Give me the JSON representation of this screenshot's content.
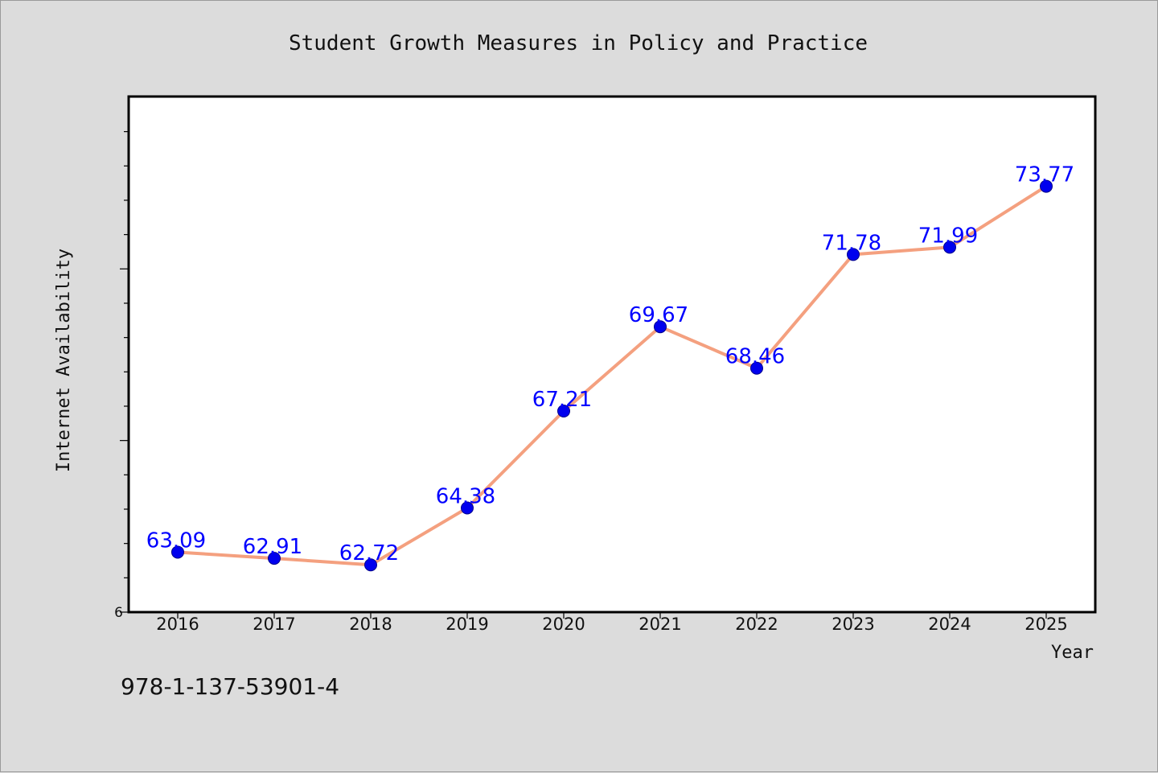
{
  "chart_data": {
    "type": "line",
    "title": "Student Growth Measures in Policy and Practice",
    "xlabel": "Year",
    "ylabel": "Internet Availability",
    "categories": [
      "2016",
      "2017",
      "2018",
      "2019",
      "2020",
      "2021",
      "2022",
      "2023",
      "2024",
      "2025"
    ],
    "series": [
      {
        "values": [
          63.09,
          62.91,
          62.72,
          64.38,
          67.21,
          69.67,
          68.46,
          71.78,
          71.99,
          73.77
        ]
      }
    ],
    "data_labels": [
      "63.09",
      "62.91",
      "62.72",
      "64.38",
      "67.21",
      "69.67",
      "68.46",
      "71.78",
      "71.99",
      "73.77"
    ],
    "y_tick_labels": [
      "6"
    ],
    "ylim": [
      61.34,
      76.39
    ],
    "grid": false,
    "legend": "none"
  },
  "footer": {
    "isbn": "978-1-137-53901-4"
  },
  "colors": {
    "background": "#dcdcdc",
    "plot_background": "#ffffff",
    "line": "#f4a07f",
    "marker": "#0000ee",
    "data_label": "#0000ff"
  }
}
